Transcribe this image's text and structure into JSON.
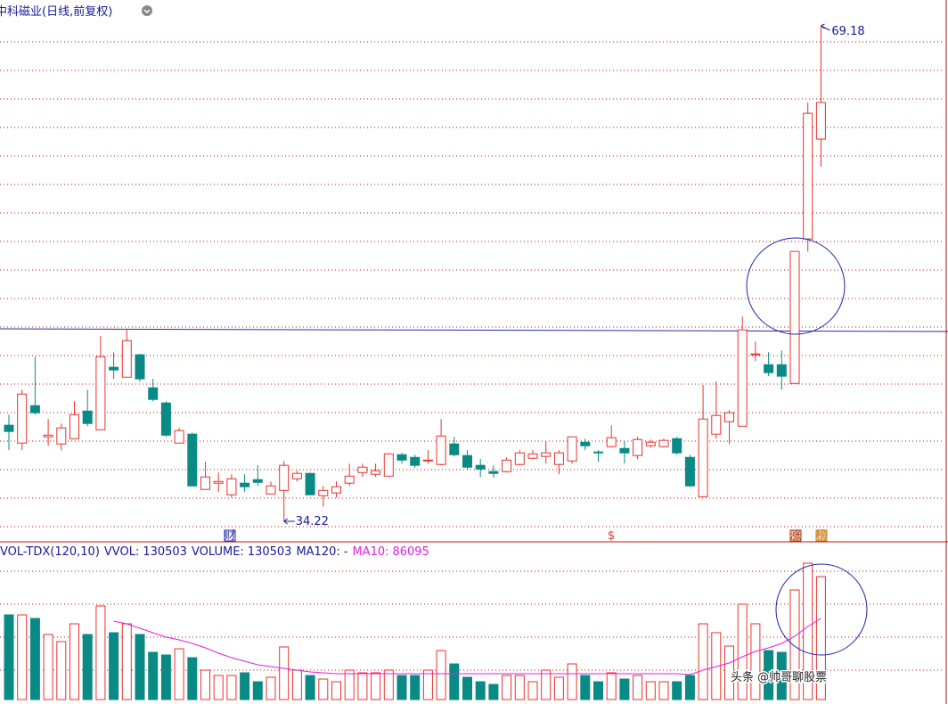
{
  "chart_data": {
    "type": "candlestick",
    "title": "中科磁业(日线,前复权)",
    "up_color": "#e8322d",
    "down_color": "#0a8a85",
    "ohlc": [
      [
        41.0,
        41.75,
        39.24,
        40.56
      ],
      [
        39.74,
        43.51,
        39.24,
        43.2
      ],
      [
        42.38,
        45.84,
        41.75,
        41.88
      ],
      [
        40.18,
        41.44,
        39.55,
        40.3
      ],
      [
        39.68,
        41.12,
        39.24,
        40.81
      ],
      [
        40.05,
        42.69,
        40.05,
        41.75
      ],
      [
        42.0,
        43.51,
        40.93,
        41.12
      ],
      [
        40.68,
        47.29,
        40.68,
        45.84
      ],
      [
        45.09,
        46.15,
        44.27,
        44.9
      ],
      [
        44.39,
        47.73,
        44.39,
        46.97
      ],
      [
        45.97,
        46.03,
        44.08,
        44.27
      ],
      [
        43.64,
        44.27,
        42.69,
        42.82
      ],
      [
        42.57,
        42.69,
        40.18,
        40.3
      ],
      [
        39.74,
        40.81,
        39.74,
        40.62
      ],
      [
        40.37,
        40.49,
        36.72,
        36.72
      ],
      [
        36.47,
        38.42,
        36.47,
        37.35
      ],
      [
        36.91,
        37.66,
        36.28,
        37.03
      ],
      [
        36.09,
        37.54,
        35.9,
        37.22
      ],
      [
        36.91,
        37.54,
        36.28,
        36.66
      ],
      [
        37.16,
        38.17,
        36.72,
        36.97
      ],
      [
        36.15,
        37.03,
        36.15,
        36.72
      ],
      [
        36.4,
        38.48,
        34.22,
        38.17
      ],
      [
        37.22,
        37.79,
        37.03,
        37.6
      ],
      [
        37.6,
        37.66,
        36.09,
        36.09
      ],
      [
        36.03,
        36.72,
        35.27,
        36.4
      ],
      [
        36.22,
        37.03,
        35.9,
        36.66
      ],
      [
        36.91,
        38.29,
        36.72,
        37.41
      ],
      [
        37.66,
        38.29,
        37.35,
        38.04
      ],
      [
        37.54,
        38.29,
        37.35,
        37.79
      ],
      [
        37.41,
        39.05,
        37.35,
        38.98
      ],
      [
        38.92,
        39.05,
        38.29,
        38.54
      ],
      [
        38.73,
        38.92,
        37.98,
        38.17
      ],
      [
        38.48,
        39.24,
        38.29,
        38.54
      ],
      [
        38.23,
        41.44,
        38.17,
        40.24
      ],
      [
        39.68,
        40.18,
        38.8,
        38.92
      ],
      [
        38.86,
        39.24,
        37.91,
        38.04
      ],
      [
        38.17,
        38.61,
        37.35,
        37.91
      ],
      [
        37.73,
        38.17,
        37.29,
        37.6
      ],
      [
        37.73,
        38.73,
        37.66,
        38.54
      ],
      [
        38.23,
        39.24,
        38.17,
        39.05
      ],
      [
        38.67,
        39.24,
        38.61,
        38.98
      ],
      [
        38.8,
        39.86,
        38.29,
        39.05
      ],
      [
        38.23,
        39.24,
        37.54,
        39.05
      ],
      [
        38.48,
        40.18,
        38.29,
        40.18
      ],
      [
        39.8,
        40.05,
        39.24,
        39.55
      ],
      [
        39.11,
        39.24,
        38.42,
        39.05
      ],
      [
        39.49,
        41.0,
        39.42,
        40.12
      ],
      [
        39.36,
        39.86,
        38.29,
        39.05
      ],
      [
        38.86,
        40.18,
        38.61,
        39.99
      ],
      [
        39.55,
        39.99,
        39.42,
        39.8
      ],
      [
        39.49,
        40.05,
        39.42,
        39.93
      ],
      [
        40.05,
        40.18,
        38.92,
        39.05
      ],
      [
        38.73,
        38.92,
        36.66,
        36.72
      ],
      [
        35.96,
        43.83,
        35.96,
        41.44
      ],
      [
        40.37,
        44.08,
        40.05,
        41.69
      ],
      [
        41.25,
        42.07,
        39.68,
        41.88
      ],
      [
        40.93,
        48.67,
        40.93,
        47.73
      ],
      [
        45.97,
        46.91,
        45.53,
        46.03
      ],
      [
        45.27,
        46.15,
        44.46,
        44.71
      ],
      [
        45.27,
        46.28,
        43.51,
        44.46
      ],
      [
        43.95,
        53.26,
        43.95,
        53.26
      ],
      [
        54.14,
        63.77,
        53.26,
        63.01
      ],
      [
        61.19,
        69.18,
        59.24,
        63.77
      ]
    ],
    "annotations": {
      "high": 69.18,
      "low": 34.22
    },
    "event_markers": [
      "财",
      "$",
      "涨",
      "榜"
    ],
    "volume_panel": {
      "indicator": "VOL-TDX(120,10)",
      "fields": [
        {
          "label": "VVOL:",
          "value": 130503
        },
        {
          "label": "VOLUME:",
          "value": 130503
        },
        {
          "label": "MA120:",
          "value": "-"
        },
        {
          "label": "MA10:",
          "value": 86095,
          "color": "#e020e0"
        }
      ],
      "values": [
        89870,
        89870,
        86086,
        69058,
        61490,
        80410,
        69058,
        99330,
        70950,
        80410,
        69058,
        50138,
        47300,
        53922,
        44462,
        31218,
        25542,
        25542,
        28380,
        18920,
        23650,
        55814,
        31218,
        25542,
        21758,
        18920,
        31218,
        28380,
        28380,
        31218,
        25542,
        25542,
        31218,
        52030,
        37840,
        23650,
        18920,
        16082,
        25542,
        25542,
        18920,
        31218,
        23650,
        37840,
        25542,
        18920,
        28380,
        21758,
        25542,
        18920,
        18920,
        18920,
        25542,
        80410,
        70950,
        56760,
        101222,
        80410,
        52030,
        50138,
        116358,
        144738,
        130503
      ],
      "ma10": [
        null,
        null,
        null,
        null,
        null,
        null,
        null,
        null,
        83248,
        80410,
        75680,
        70950,
        66220,
        63382,
        59598,
        54868,
        49192,
        44462,
        40678,
        36894,
        35002,
        33110,
        31218,
        29326,
        28380,
        27434,
        27434,
        27434,
        27434,
        27434,
        27434,
        27434,
        27434,
        27434,
        27434,
        27434,
        27434,
        27434,
        27434,
        27434,
        27434,
        27434,
        27434,
        27434,
        27434,
        27434,
        27434,
        27434,
        27434,
        27434,
        27434,
        27434,
        26488,
        31218,
        35002,
        38786,
        45408,
        51084,
        54868,
        59598,
        67166,
        77572,
        86095
      ],
      "ma10_color": "#e020e0"
    },
    "watermark": "头条 @帅哥聊股票"
  }
}
